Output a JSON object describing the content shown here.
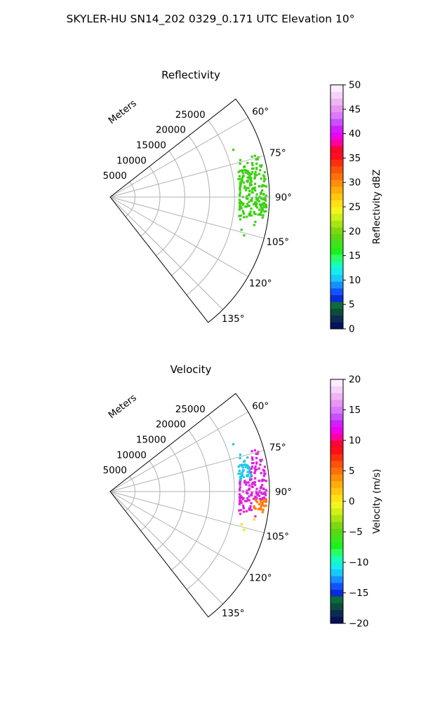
{
  "figure_title": "SKYLER-HU  SN14_202  0329_0.171 UTC Elevation 10°",
  "colors": {
    "grid": "#b0b0b0",
    "frame": "#000000",
    "reflectivity_echo": "#3ecf14",
    "velocity_magenta": "#dd22dd",
    "velocity_cyan": "#1ec8e6",
    "velocity_orange": "#ff7a00",
    "velocity_yellow": "#f2e600"
  },
  "chart_data": [
    {
      "type": "heatmap",
      "projection": "polar-sector",
      "title": "Reflectivity",
      "radial_label": "Meters",
      "radial_ticks": [
        5000,
        10000,
        15000,
        20000,
        25000
      ],
      "radial_range": [
        0,
        32000
      ],
      "angle_ticks": [
        "60°",
        "75°",
        "90°",
        "105°",
        "120°",
        "135°"
      ],
      "angle_tick_values": [
        60,
        75,
        90,
        105,
        120,
        135
      ],
      "angle_range": [
        52,
        142
      ],
      "grid": true,
      "echo_region": {
        "azimuth_range": [
          74,
          100
        ],
        "range_m": [
          26000,
          31500
        ],
        "value_dbz": 18
      },
      "colorbar": {
        "label": "Reflectivity dBZ",
        "range": [
          0,
          50
        ],
        "ticks": [
          0,
          5,
          10,
          15,
          20,
          25,
          30,
          35,
          40,
          45,
          50
        ],
        "colors": [
          "#07125a",
          "#0b2c52",
          "#0f4a3a",
          "#0c6c3a",
          "#0a2bd6",
          "#1154ff",
          "#1690ff",
          "#19c8ff",
          "#14ecee",
          "#17ffb4",
          "#28ff64",
          "#1cf01c",
          "#3ce61a",
          "#5ad812",
          "#7cd812",
          "#a8e414",
          "#cff018",
          "#f4f51e",
          "#ffe114",
          "#ffc80f",
          "#ffad0c",
          "#ff8f0a",
          "#ff700a",
          "#ff520a",
          "#ff2e0e",
          "#ff0f1a",
          "#f7082e",
          "#ff00a0",
          "#f000f0",
          "#d21eff",
          "#c850ff",
          "#dc78ff",
          "#e696f0",
          "#eeb4f4",
          "#f6d2fa",
          "#fcecfd"
        ]
      }
    },
    {
      "type": "heatmap",
      "projection": "polar-sector",
      "title": "Velocity",
      "radial_label": "Meters",
      "radial_ticks": [
        5000,
        10000,
        15000,
        20000,
        25000
      ],
      "radial_range": [
        0,
        32000
      ],
      "angle_ticks": [
        "60°",
        "75°",
        "90°",
        "105°",
        "120°",
        "135°"
      ],
      "angle_tick_values": [
        60,
        75,
        90,
        105,
        120,
        135
      ],
      "angle_range": [
        52,
        142
      ],
      "grid": true,
      "echo_region": {
        "azimuth_range": [
          74,
          100
        ],
        "range_m": [
          26000,
          31500
        ],
        "value_ms": [
          -12,
          12
        ]
      },
      "colorbar": {
        "label": "Velocity (m/s)",
        "range": [
          -20,
          20
        ],
        "ticks": [
          -20,
          -15,
          -10,
          -5,
          0,
          5,
          10,
          15,
          20
        ],
        "colors": [
          "#07125a",
          "#0b2c52",
          "#0f4a3a",
          "#0c6c3a",
          "#0a2bd6",
          "#1154ff",
          "#1690ff",
          "#19c8ff",
          "#14ecee",
          "#17ffb4",
          "#28ff64",
          "#1cf01c",
          "#3ce61a",
          "#5ad812",
          "#7cd812",
          "#a8e414",
          "#cff018",
          "#f4f51e",
          "#ffe114",
          "#ffc80f",
          "#ffad0c",
          "#ff8f0a",
          "#ff700a",
          "#ff520a",
          "#ff2e0e",
          "#ff0f1a",
          "#f7082e",
          "#ff00a0",
          "#f000f0",
          "#d21eff",
          "#c850ff",
          "#dc78ff",
          "#e696f0",
          "#eeb4f4",
          "#f6d2fa",
          "#fcecfd"
        ]
      }
    }
  ]
}
